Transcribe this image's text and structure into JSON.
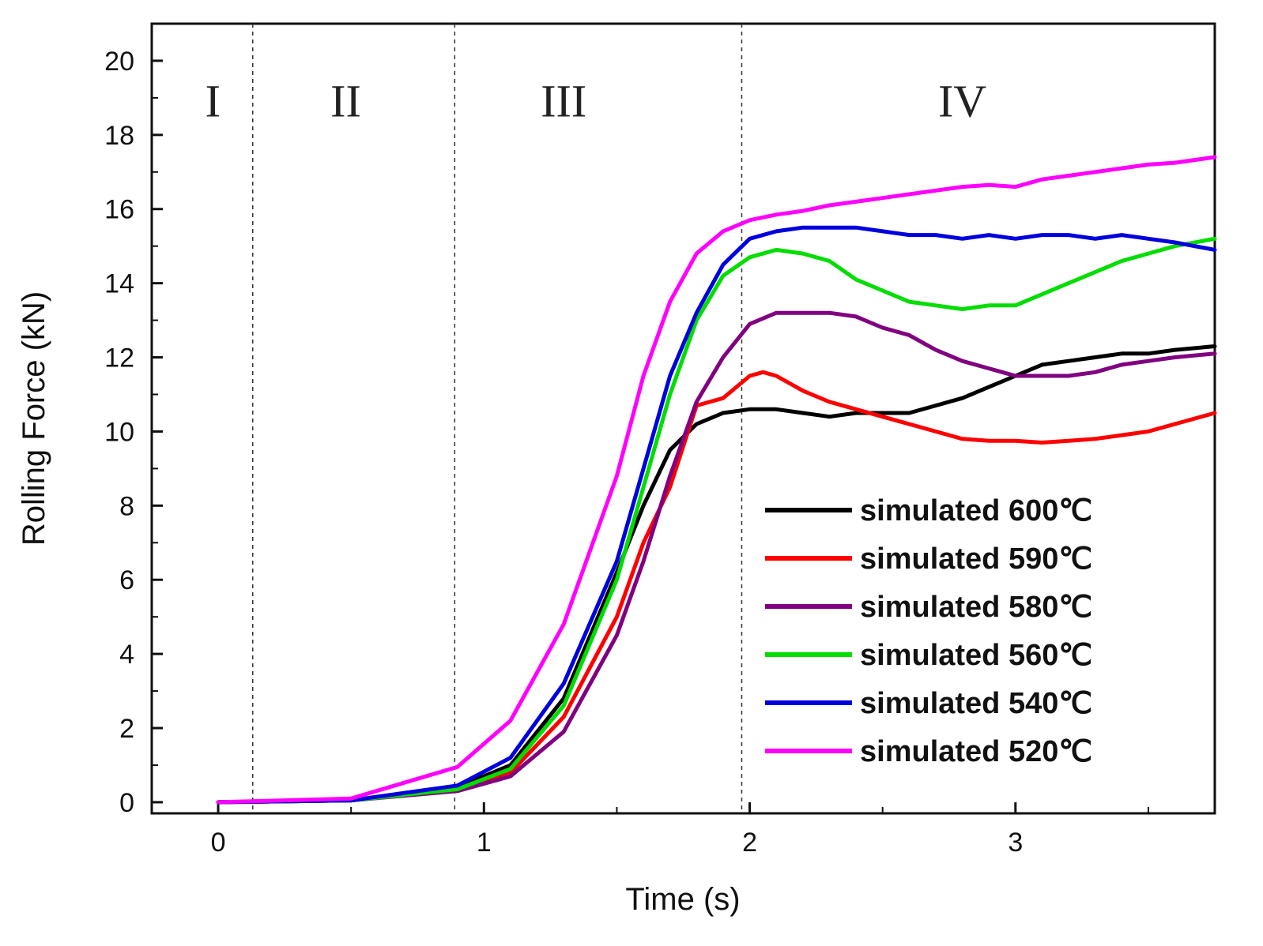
{
  "chart_data": {
    "type": "line",
    "title": "",
    "xlabel": "Time (s)",
    "ylabel": "Rolling Force (kN)",
    "xlim": [
      -0.25,
      3.75
    ],
    "ylim": [
      -0.3,
      21.0
    ],
    "x_ticks": [
      "0",
      "1",
      "2",
      "3"
    ],
    "y_ticks": [
      "0",
      "2",
      "4",
      "6",
      "8",
      "10",
      "12",
      "14",
      "16",
      "18",
      "20"
    ],
    "grid": false,
    "legend_position": "bottom-right",
    "regions": {
      "boundaries": [
        0.13,
        0.89,
        1.97
      ],
      "labels": [
        "I",
        "II",
        "III",
        "IV"
      ],
      "label_x": [
        -0.02,
        0.48,
        1.3,
        2.8
      ],
      "label_y": 18.5
    },
    "series": [
      {
        "name": "simulated 600℃",
        "color": "#000000",
        "x": [
          0,
          0.5,
          0.9,
          1.1,
          1.3,
          1.5,
          1.6,
          1.7,
          1.8,
          1.9,
          2.0,
          2.1,
          2.2,
          2.3,
          2.4,
          2.5,
          2.6,
          2.7,
          2.8,
          2.9,
          3.0,
          3.1,
          3.2,
          3.3,
          3.4,
          3.5,
          3.6,
          3.75
        ],
        "y": [
          0,
          0.05,
          0.4,
          1.0,
          2.8,
          6.2,
          8.0,
          9.5,
          10.2,
          10.5,
          10.6,
          10.6,
          10.5,
          10.4,
          10.5,
          10.5,
          10.5,
          10.7,
          10.9,
          11.2,
          11.5,
          11.8,
          11.9,
          12.0,
          12.1,
          12.1,
          12.2,
          12.3
        ]
      },
      {
        "name": "simulated 590℃",
        "color": "#ff0000",
        "x": [
          0,
          0.5,
          0.9,
          1.1,
          1.3,
          1.5,
          1.6,
          1.7,
          1.8,
          1.9,
          2.0,
          2.05,
          2.1,
          2.2,
          2.3,
          2.4,
          2.5,
          2.6,
          2.7,
          2.8,
          2.9,
          3.0,
          3.1,
          3.2,
          3.3,
          3.4,
          3.5,
          3.6,
          3.75
        ],
        "y": [
          0,
          0.05,
          0.35,
          0.8,
          2.3,
          5.0,
          7.0,
          8.5,
          10.7,
          10.9,
          11.5,
          11.6,
          11.5,
          11.1,
          10.8,
          10.6,
          10.4,
          10.2,
          10.0,
          9.8,
          9.75,
          9.75,
          9.7,
          9.75,
          9.8,
          9.9,
          10.0,
          10.2,
          10.5
        ]
      },
      {
        "name": "simulated 580℃",
        "color": "#800080",
        "x": [
          0,
          0.5,
          0.9,
          1.1,
          1.3,
          1.5,
          1.6,
          1.7,
          1.8,
          1.9,
          2.0,
          2.1,
          2.2,
          2.3,
          2.4,
          2.5,
          2.6,
          2.7,
          2.8,
          2.9,
          3.0,
          3.1,
          3.2,
          3.3,
          3.4,
          3.5,
          3.6,
          3.75
        ],
        "y": [
          0,
          0.05,
          0.3,
          0.7,
          1.9,
          4.5,
          6.5,
          8.8,
          10.8,
          12.0,
          12.9,
          13.2,
          13.2,
          13.2,
          13.1,
          12.8,
          12.6,
          12.2,
          11.9,
          11.7,
          11.5,
          11.5,
          11.5,
          11.6,
          11.8,
          11.9,
          12.0,
          12.1
        ]
      },
      {
        "name": "simulated 560℃",
        "color": "#00dd00",
        "x": [
          0,
          0.5,
          0.9,
          1.1,
          1.3,
          1.5,
          1.6,
          1.7,
          1.8,
          1.9,
          2.0,
          2.1,
          2.2,
          2.3,
          2.4,
          2.5,
          2.6,
          2.7,
          2.8,
          2.9,
          3.0,
          3.1,
          3.2,
          3.3,
          3.4,
          3.5,
          3.6,
          3.75
        ],
        "y": [
          0,
          0.05,
          0.35,
          0.9,
          2.6,
          6.0,
          8.5,
          11.0,
          13.0,
          14.2,
          14.7,
          14.9,
          14.8,
          14.6,
          14.1,
          13.8,
          13.5,
          13.4,
          13.3,
          13.4,
          13.4,
          13.7,
          14.0,
          14.3,
          14.6,
          14.8,
          15.0,
          15.2
        ]
      },
      {
        "name": "simulated 540℃",
        "color": "#0000dd",
        "x": [
          0,
          0.5,
          0.9,
          1.1,
          1.3,
          1.5,
          1.6,
          1.7,
          1.8,
          1.9,
          2.0,
          2.1,
          2.2,
          2.3,
          2.4,
          2.5,
          2.6,
          2.7,
          2.8,
          2.9,
          3.0,
          3.1,
          3.2,
          3.3,
          3.4,
          3.5,
          3.6,
          3.75
        ],
        "y": [
          0,
          0.05,
          0.45,
          1.2,
          3.2,
          6.5,
          9.0,
          11.5,
          13.2,
          14.5,
          15.2,
          15.4,
          15.5,
          15.5,
          15.5,
          15.4,
          15.3,
          15.3,
          15.2,
          15.3,
          15.2,
          15.3,
          15.3,
          15.2,
          15.3,
          15.2,
          15.1,
          14.9
        ]
      },
      {
        "name": "simulated 520℃",
        "color": "#ff00ff",
        "x": [
          0,
          0.5,
          0.9,
          1.1,
          1.3,
          1.5,
          1.6,
          1.7,
          1.8,
          1.9,
          2.0,
          2.1,
          2.2,
          2.3,
          2.4,
          2.5,
          2.6,
          2.7,
          2.8,
          2.9,
          3.0,
          3.1,
          3.2,
          3.3,
          3.4,
          3.5,
          3.6,
          3.75
        ],
        "y": [
          0,
          0.1,
          0.95,
          2.2,
          4.8,
          8.8,
          11.5,
          13.5,
          14.8,
          15.4,
          15.7,
          15.85,
          15.95,
          16.1,
          16.2,
          16.3,
          16.4,
          16.5,
          16.6,
          16.65,
          16.6,
          16.8,
          16.9,
          17.0,
          17.1,
          17.2,
          17.25,
          17.4
        ]
      }
    ]
  }
}
